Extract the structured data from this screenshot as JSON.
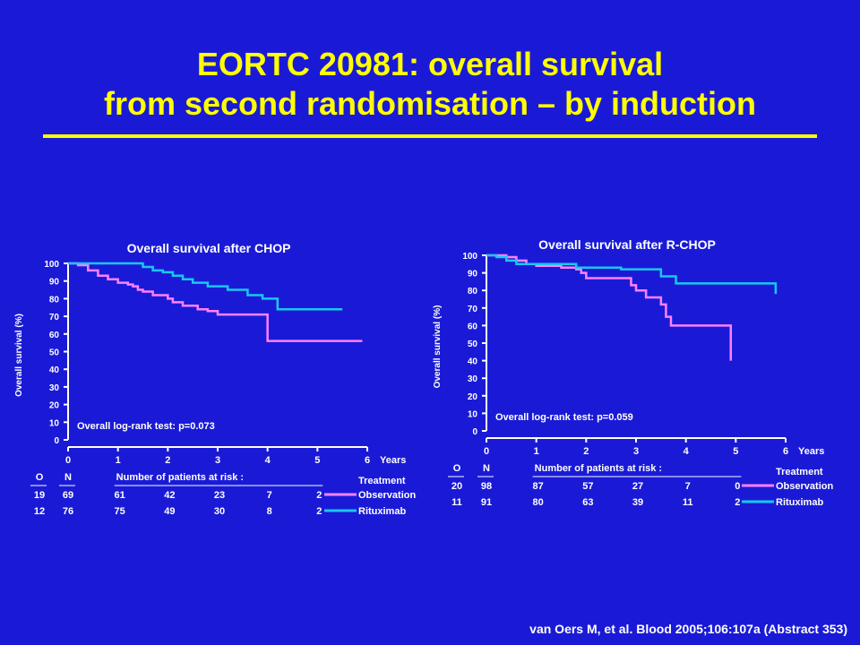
{
  "title": {
    "line1": "EORTC 20981: overall survival",
    "line2": "from second randomisation – by induction"
  },
  "citation": "van Oers M, et al. Blood 2005;106:107a (Abstract 353)",
  "colors": {
    "background": "#1a1ad6",
    "title": "#ffff00",
    "observation": "#ff80ff",
    "rituximab": "#18c8f0"
  },
  "chart_data": [
    {
      "type": "line",
      "title": "Overall survival after CHOP",
      "xlabel": "Years",
      "ylabel": "Overall survival (%)",
      "xlim": [
        0,
        6
      ],
      "ylim": [
        0,
        100
      ],
      "xticks": [
        "0",
        "1",
        "2",
        "3",
        "4",
        "5",
        "6"
      ],
      "yticks": [
        "0",
        "10",
        "20",
        "30",
        "40",
        "50",
        "60",
        "70",
        "80",
        "90",
        "100"
      ],
      "annotation": "Overall log-rank test: p=0.073",
      "series": [
        {
          "name": "Observation",
          "color": "#ff80ff",
          "x": [
            0,
            0.2,
            0.4,
            0.6,
            0.8,
            1.0,
            1.2,
            1.3,
            1.4,
            1.5,
            1.7,
            2.0,
            2.1,
            2.3,
            2.6,
            2.8,
            3.0,
            3.9,
            4.0,
            5.9
          ],
          "y": [
            100,
            99,
            96,
            93,
            91,
            89,
            88,
            87,
            85,
            84,
            82,
            80,
            78,
            76,
            74,
            73,
            71,
            71,
            56,
            56
          ]
        },
        {
          "name": "Rituximab",
          "color": "#18c8f0",
          "x": [
            0,
            1.0,
            1.5,
            1.7,
            1.9,
            2.1,
            2.3,
            2.5,
            2.8,
            3.2,
            3.6,
            3.9,
            4.2,
            5.5
          ],
          "y": [
            100,
            100,
            98,
            96,
            95,
            93,
            91,
            89,
            87,
            85,
            82,
            80,
            74,
            74
          ]
        }
      ],
      "risk_table": {
        "header": "Number of patients at risk :",
        "col_o": "O",
        "col_n": "N",
        "legend_title": "Treatment",
        "rows": [
          {
            "o": "19",
            "n": "69",
            "counts": [
              "61",
              "42",
              "23",
              "7",
              "2"
            ],
            "label": "Observation"
          },
          {
            "o": "12",
            "n": "76",
            "counts": [
              "75",
              "49",
              "30",
              "8",
              "2"
            ],
            "label": "Rituximab"
          }
        ]
      }
    },
    {
      "type": "line",
      "title": "Overall survival after R-CHOP",
      "xlabel": "Years",
      "ylabel": "Overall survival (%)",
      "xlim": [
        0,
        6
      ],
      "ylim": [
        0,
        100
      ],
      "xticks": [
        "0",
        "1",
        "2",
        "3",
        "4",
        "5",
        "6"
      ],
      "yticks": [
        "0",
        "10",
        "20",
        "30",
        "40",
        "50",
        "60",
        "70",
        "80",
        "90",
        "100"
      ],
      "annotation": "Overall log-rank test: p=0.059",
      "series": [
        {
          "name": "Observation",
          "color": "#ff80ff",
          "x": [
            0,
            0.4,
            0.6,
            0.8,
            1.0,
            1.5,
            1.8,
            1.9,
            2.0,
            2.8,
            2.9,
            3.0,
            3.2,
            3.5,
            3.6,
            3.7,
            4.6,
            4.9
          ],
          "y": [
            100,
            99,
            97,
            95,
            94,
            93,
            92,
            90,
            87,
            87,
            83,
            80,
            76,
            72,
            65,
            60,
            60,
            40
          ]
        },
        {
          "name": "Rituximab",
          "color": "#18c8f0",
          "x": [
            0,
            0.2,
            0.4,
            0.6,
            1.8,
            2.7,
            3.5,
            3.8,
            5.8
          ],
          "y": [
            100,
            99,
            97,
            95,
            93,
            92,
            88,
            84,
            78
          ]
        }
      ],
      "risk_table": {
        "header": "Number of patients at risk :",
        "col_o": "O",
        "col_n": "N",
        "legend_title": "Treatment",
        "rows": [
          {
            "o": "20",
            "n": "98",
            "counts": [
              "87",
              "57",
              "27",
              "7",
              "0"
            ],
            "label": "Observation"
          },
          {
            "o": "11",
            "n": "91",
            "counts": [
              "80",
              "63",
              "39",
              "11",
              "2"
            ],
            "label": "Rituximab"
          }
        ]
      }
    }
  ]
}
